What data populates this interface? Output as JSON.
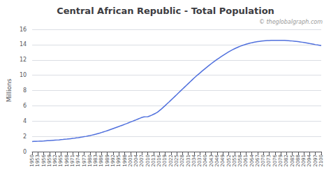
{
  "chart_data": {
    "type": "line",
    "title": "Central African Republic - Total Population",
    "annotations": [
      "© theglobalgraph.com"
    ],
    "ylabel": "Millions",
    "xlim": [
      1950,
      2100
    ],
    "ylim": [
      0,
      16
    ],
    "yticks": [
      0,
      2,
      4,
      6,
      8,
      10,
      12,
      14,
      16
    ],
    "xticks": [
      1950,
      1953,
      1956,
      1959,
      1962,
      1965,
      1968,
      1971,
      1974,
      1977,
      1980,
      1983,
      1986,
      1989,
      1992,
      1995,
      1998,
      2001,
      2004,
      2007,
      2010,
      2013,
      2016,
      2019,
      2022,
      2025,
      2028,
      2031,
      2034,
      2037,
      2040,
      2043,
      2046,
      2049,
      2052,
      2055,
      2058,
      2061,
      2064,
      2067,
      2070,
      2073,
      2076,
      2079,
      2082,
      2085,
      2088,
      2091,
      2094,
      2097,
      2100
    ],
    "grid": true,
    "x": [
      1950,
      1951,
      1952,
      1953,
      1954,
      1955,
      1956,
      1957,
      1958,
      1959,
      1960,
      1961,
      1962,
      1963,
      1964,
      1965,
      1966,
      1967,
      1968,
      1969,
      1970,
      1971,
      1972,
      1973,
      1974,
      1975,
      1976,
      1977,
      1978,
      1979,
      1980,
      1981,
      1982,
      1983,
      1984,
      1985,
      1986,
      1987,
      1988,
      1989,
      1990,
      1991,
      1992,
      1993,
      1994,
      1995,
      1996,
      1997,
      1998,
      1999,
      2000,
      2001,
      2002,
      2003,
      2004,
      2005,
      2006,
      2007,
      2008,
      2009,
      2010,
      2011,
      2012,
      2013,
      2014,
      2015,
      2016,
      2017,
      2018,
      2019,
      2020,
      2021,
      2022,
      2023,
      2024,
      2025,
      2026,
      2027,
      2028,
      2029,
      2030,
      2031,
      2032,
      2033,
      2034,
      2035,
      2036,
      2037,
      2038,
      2039,
      2040,
      2041,
      2042,
      2043,
      2044,
      2045,
      2046,
      2047,
      2048,
      2049,
      2050,
      2051,
      2052,
      2053,
      2054,
      2055,
      2056,
      2057,
      2058,
      2059,
      2060,
      2061,
      2062,
      2063,
      2064,
      2065,
      2066,
      2067,
      2068,
      2069,
      2070,
      2071,
      2072,
      2073,
      2074,
      2075,
      2076,
      2077,
      2078,
      2079,
      2080,
      2081,
      2082,
      2083,
      2084,
      2085,
      2086,
      2087,
      2088,
      2089,
      2090,
      2091,
      2092,
      2093,
      2094,
      2095,
      2096,
      2097,
      2098,
      2099,
      2100
    ],
    "values": [
      1.33,
      1.34,
      1.35,
      1.36,
      1.37,
      1.38,
      1.39,
      1.41,
      1.43,
      1.44,
      1.46,
      1.48,
      1.5,
      1.52,
      1.54,
      1.57,
      1.59,
      1.62,
      1.64,
      1.67,
      1.7,
      1.73,
      1.76,
      1.8,
      1.83,
      1.87,
      1.91,
      1.96,
      2.0,
      2.05,
      2.1,
      2.16,
      2.22,
      2.28,
      2.35,
      2.42,
      2.5,
      2.58,
      2.66,
      2.75,
      2.84,
      2.93,
      3.02,
      3.11,
      3.2,
      3.29,
      3.39,
      3.48,
      3.58,
      3.67,
      3.77,
      3.87,
      3.97,
      4.07,
      4.17,
      4.28,
      4.38,
      4.48,
      4.55,
      4.56,
      4.57,
      4.66,
      4.77,
      4.89,
      5.01,
      5.16,
      5.36,
      5.57,
      5.79,
      6.02,
      6.26,
      6.49,
      6.73,
      6.97,
      7.21,
      7.45,
      7.7,
      7.94,
      8.18,
      8.42,
      8.66,
      8.9,
      9.14,
      9.38,
      9.62,
      9.85,
      10.07,
      10.28,
      10.5,
      10.71,
      10.92,
      11.12,
      11.32,
      11.52,
      11.71,
      11.89,
      12.07,
      12.25,
      12.42,
      12.59,
      12.75,
      12.91,
      13.06,
      13.2,
      13.33,
      13.46,
      13.58,
      13.69,
      13.79,
      13.89,
      13.97,
      14.05,
      14.12,
      14.19,
      14.25,
      14.3,
      14.35,
      14.39,
      14.43,
      14.46,
      14.49,
      14.51,
      14.53,
      14.54,
      14.55,
      14.56,
      14.57,
      14.57,
      14.57,
      14.57,
      14.56,
      14.55,
      14.54,
      14.52,
      14.5,
      14.48,
      14.45,
      14.42,
      14.39,
      14.36,
      14.32,
      14.28,
      14.24,
      14.19,
      14.14,
      14.1,
      14.05,
      14.0,
      13.96,
      13.92,
      13.88
    ]
  }
}
